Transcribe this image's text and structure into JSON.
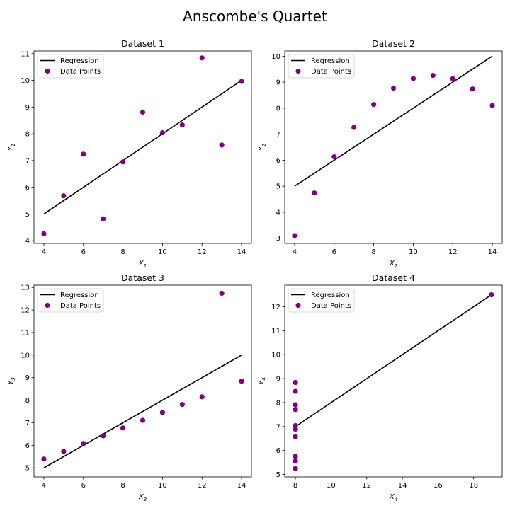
{
  "figure": {
    "title": "Anscombe's Quartet"
  },
  "colors": {
    "regression": "#000000",
    "points": "#800080"
  },
  "legend": {
    "regression": "Regression",
    "points": "Data Points"
  },
  "chart_data": [
    {
      "type": "scatter",
      "title": "Dataset 1",
      "xlabel": "X",
      "xlabel_sub": "1",
      "ylabel": "Y",
      "ylabel_sub": "1",
      "xlim": [
        3.5,
        14.5
      ],
      "ylim": [
        3.9,
        11.1
      ],
      "xticks": [
        4,
        6,
        8,
        10,
        12,
        14
      ],
      "yticks": [
        4,
        5,
        6,
        7,
        8,
        9,
        10,
        11
      ],
      "legend_position": "top-left",
      "series": [
        {
          "name": "Regression",
          "kind": "line",
          "x": [
            4,
            14
          ],
          "y": [
            5,
            10
          ]
        },
        {
          "name": "Data Points",
          "kind": "scatter",
          "x": [
            10,
            8,
            13,
            9,
            11,
            14,
            6,
            4,
            12,
            7,
            5
          ],
          "y": [
            8.04,
            6.95,
            7.58,
            8.81,
            8.33,
            9.96,
            7.24,
            4.26,
            10.84,
            4.82,
            5.68
          ]
        }
      ]
    },
    {
      "type": "scatter",
      "title": "Dataset 2",
      "xlabel": "X",
      "xlabel_sub": "2",
      "ylabel": "Y",
      "ylabel_sub": "2",
      "xlim": [
        3.5,
        14.5
      ],
      "ylim": [
        2.8,
        10.2
      ],
      "xticks": [
        4,
        6,
        8,
        10,
        12,
        14
      ],
      "yticks": [
        3,
        4,
        5,
        6,
        7,
        8,
        9,
        10
      ],
      "legend_position": "top-left",
      "series": [
        {
          "name": "Regression",
          "kind": "line",
          "x": [
            4,
            14
          ],
          "y": [
            5,
            10
          ]
        },
        {
          "name": "Data Points",
          "kind": "scatter",
          "x": [
            10,
            8,
            13,
            9,
            11,
            14,
            6,
            4,
            12,
            7,
            5
          ],
          "y": [
            9.14,
            8.14,
            8.74,
            8.77,
            9.26,
            8.1,
            6.13,
            3.1,
            9.13,
            7.26,
            4.74
          ]
        }
      ]
    },
    {
      "type": "scatter",
      "title": "Dataset 3",
      "xlabel": "X",
      "xlabel_sub": "3",
      "ylabel": "Y",
      "ylabel_sub": "3",
      "xlim": [
        3.5,
        14.5
      ],
      "ylim": [
        4.6,
        13.1
      ],
      "xticks": [
        4,
        6,
        8,
        10,
        12,
        14
      ],
      "yticks": [
        5,
        6,
        7,
        8,
        9,
        10,
        11,
        12,
        13
      ],
      "legend_position": "top-left",
      "series": [
        {
          "name": "Regression",
          "kind": "line",
          "x": [
            4,
            14
          ],
          "y": [
            5,
            10
          ]
        },
        {
          "name": "Data Points",
          "kind": "scatter",
          "x": [
            10,
            8,
            13,
            9,
            11,
            14,
            6,
            4,
            12,
            7,
            5
          ],
          "y": [
            7.46,
            6.77,
            12.74,
            7.11,
            7.81,
            8.84,
            6.08,
            5.39,
            8.15,
            6.42,
            5.73
          ]
        }
      ]
    },
    {
      "type": "scatter",
      "title": "Dataset 4",
      "xlabel": "X",
      "xlabel_sub": "4",
      "ylabel": "Y",
      "ylabel_sub": "4",
      "xlim": [
        7.4,
        19.6
      ],
      "ylim": [
        4.9,
        12.9
      ],
      "xticks": [
        8,
        10,
        12,
        14,
        16,
        18
      ],
      "yticks": [
        5,
        6,
        7,
        8,
        9,
        10,
        11,
        12
      ],
      "legend_position": "top-left",
      "series": [
        {
          "name": "Regression",
          "kind": "line",
          "x": [
            8,
            19
          ],
          "y": [
            7,
            12.5
          ]
        },
        {
          "name": "Data Points",
          "kind": "scatter",
          "x": [
            8,
            8,
            8,
            8,
            8,
            8,
            8,
            19,
            8,
            8,
            8
          ],
          "y": [
            6.58,
            5.76,
            7.71,
            8.84,
            8.47,
            7.04,
            5.25,
            12.5,
            5.56,
            7.91,
            6.89
          ]
        }
      ]
    }
  ]
}
